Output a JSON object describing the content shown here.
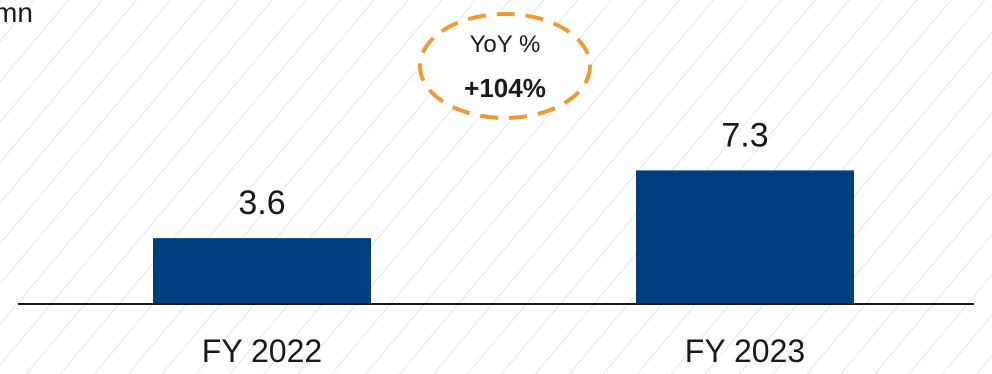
{
  "unit_text": "mn",
  "colors": {
    "bar": "#003f7f",
    "baseline": "#1a1a1a",
    "hatch": "#e6e6e6",
    "callout": "#ef9a31"
  },
  "callout": {
    "label": "YoY %",
    "value": "+104%"
  },
  "chart_data": {
    "type": "bar",
    "categories": [
      "FY 2022",
      "FY 2023"
    ],
    "values": [
      3.6,
      7.3
    ],
    "data_labels": [
      "3.6",
      "7.3"
    ],
    "title": "",
    "xlabel": "",
    "ylabel": "",
    "ylim": [
      0,
      8
    ]
  }
}
